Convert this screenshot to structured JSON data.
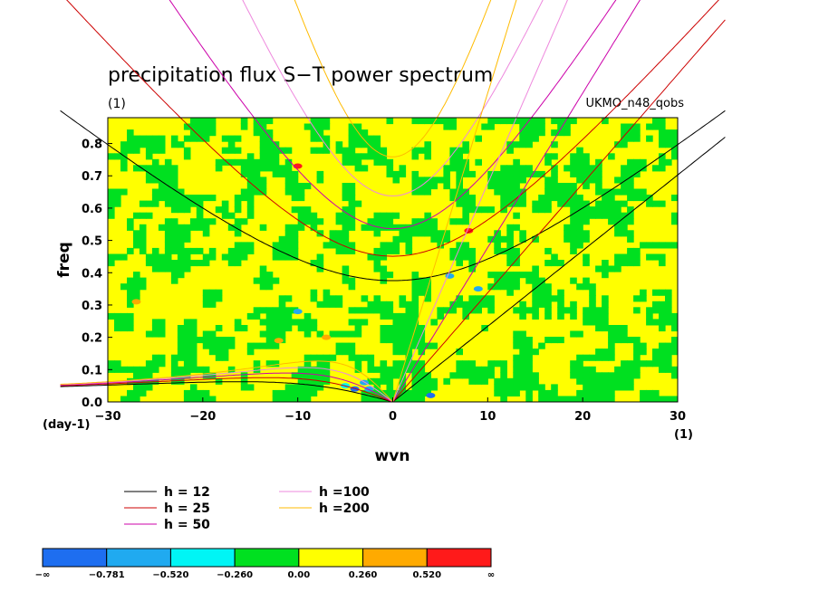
{
  "chart_data": {
    "type": "heatmap",
    "title": "precipitation flux S−T power spectrum",
    "subtitle_left": "(1)",
    "subtitle_right": "UKMO_n48_qobs",
    "xlabel": "wvn",
    "ylabel": "freq",
    "xunit": "(1)",
    "yunit": "(day-1)",
    "xlim": [
      -30,
      30
    ],
    "ylim": [
      0,
      0.88
    ],
    "xticks": [
      -30,
      -20,
      -10,
      0,
      10,
      20,
      30
    ],
    "yticks": [
      0.0,
      0.1,
      0.2,
      0.3,
      0.4,
      0.5,
      0.6,
      0.7,
      0.8
    ],
    "xtick_labels": [
      "−30",
      "−20",
      "−10",
      "0",
      "10",
      "20",
      "30"
    ],
    "ytick_labels": [
      "0.0",
      "0.1",
      "0.2",
      "0.3",
      "0.4",
      "0.5",
      "0.6",
      "0.7",
      "0.8"
    ],
    "dispersion_curves": [
      {
        "name": "h = 12",
        "h": 12,
        "color": "#000000"
      },
      {
        "name": "h = 25",
        "h": 25,
        "color": "#cc0000"
      },
      {
        "name": "h = 50",
        "h": 50,
        "color": "#cc00aa"
      },
      {
        "name": "h =100",
        "h": 100,
        "color": "#ee88dd"
      },
      {
        "name": "h =200",
        "h": 200,
        "color": "#ffbb00"
      }
    ],
    "colorbar": {
      "levels": [
        "−∞",
        "−0.781",
        "−0.520",
        "−0.260",
        "0.00",
        "0.260",
        "0.520",
        "∞"
      ],
      "colors": [
        "#1e6ef0",
        "#20aaf0",
        "#00f5f5",
        "#00e020",
        "#ffff00",
        "#ffaa00",
        "#ff1a1a"
      ]
    },
    "field_description_levels": {
      "dominant": [
        "0.00 to 0.260",
        "-0.260 to 0.00"
      ]
    }
  }
}
